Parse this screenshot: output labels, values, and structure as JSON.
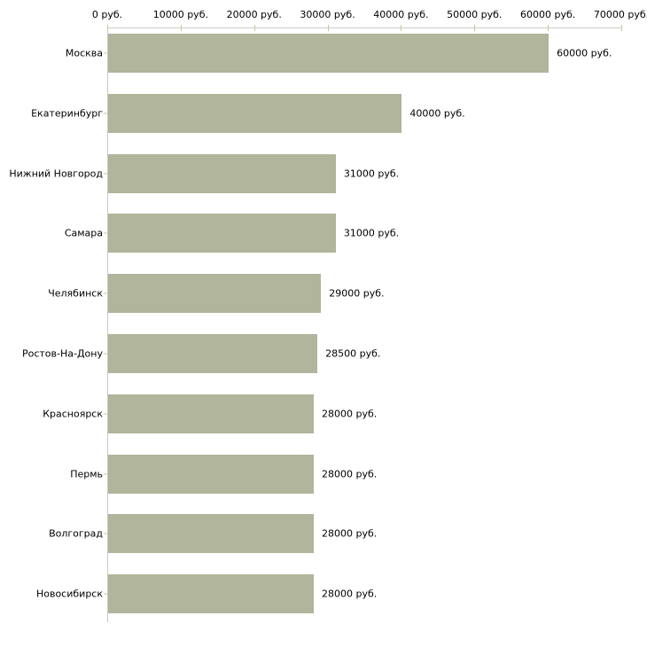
{
  "chart_data": {
    "type": "bar",
    "orientation": "horizontal",
    "title": "",
    "categories": [
      "Москва",
      "Екатеринбург",
      "Нижний Новгород",
      "Самара",
      "Челябинск",
      "Ростов-На-Дону",
      "Красноярск",
      "Пермь",
      "Волгоград",
      "Новосибирск"
    ],
    "values": [
      60000,
      40000,
      31000,
      31000,
      29000,
      28500,
      28000,
      28000,
      28000,
      28000
    ],
    "value_labels": [
      "60000 руб.",
      "40000 руб.",
      "31000 руб.",
      "31000 руб.",
      "29000 руб.",
      "28500 руб.",
      "28000 руб.",
      "28000 руб.",
      "28000 руб.",
      "28000 руб."
    ],
    "x_axis": {
      "position": "top",
      "min": 0,
      "max": 70000,
      "ticks": [
        0,
        10000,
        20000,
        30000,
        40000,
        50000,
        60000,
        70000
      ],
      "tick_labels": [
        "0 руб.",
        "10000 руб.",
        "20000 руб.",
        "30000 руб.",
        "40000 руб.",
        "50000 руб.",
        "60000 руб.",
        "70000 руб."
      ]
    },
    "grid": false,
    "legend": false,
    "colors": {
      "bar_fill": "#b0b59b",
      "axis_line": "#cccccc",
      "tick_mark": "#c9c5a0",
      "label_text": "#000000",
      "background": "#ffffff"
    }
  }
}
